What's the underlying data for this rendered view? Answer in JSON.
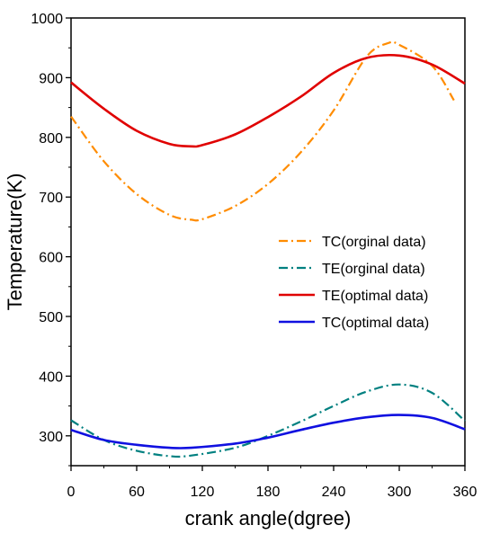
{
  "chart_data": {
    "type": "line",
    "xlabel": "crank angle(dgree)",
    "ylabel": "Temperature(K)",
    "xlim": [
      0,
      360
    ],
    "ylim": [
      250,
      1000
    ],
    "xticks": [
      0,
      60,
      120,
      180,
      240,
      300,
      360
    ],
    "yticks": [
      300,
      400,
      500,
      600,
      700,
      800,
      900,
      1000
    ],
    "grid": false,
    "legend_position": "right",
    "series": [
      {
        "name": "TC(orginal data)",
        "color": "#ff8c00",
        "dash": "dash-dot",
        "x": [
          0,
          30,
          60,
          90,
          110,
          120,
          150,
          180,
          210,
          240,
          270,
          290,
          300,
          330,
          350
        ],
        "y": [
          835,
          760,
          705,
          670,
          662,
          663,
          685,
          722,
          775,
          845,
          935,
          958,
          955,
          920,
          862
        ]
      },
      {
        "name": "TE(orginal data)",
        "color": "#008080",
        "dash": "dash-dot",
        "x": [
          0,
          30,
          60,
          90,
          110,
          150,
          180,
          210,
          240,
          270,
          300,
          330,
          360
        ],
        "y": [
          326,
          293,
          275,
          266,
          267,
          280,
          300,
          324,
          350,
          374,
          386,
          372,
          325
        ]
      },
      {
        "name": "TE(optimal data)",
        "color": "#e00000",
        "dash": "solid",
        "x": [
          0,
          30,
          60,
          90,
          110,
          120,
          150,
          180,
          210,
          240,
          270,
          300,
          330,
          360
        ],
        "y": [
          892,
          848,
          811,
          789,
          785,
          787,
          805,
          834,
          868,
          908,
          933,
          937,
          922,
          890
        ]
      },
      {
        "name": "TC(optimal data)",
        "color": "#1010e0",
        "dash": "solid",
        "x": [
          0,
          30,
          60,
          90,
          110,
          150,
          180,
          210,
          240,
          270,
          300,
          330,
          360
        ],
        "y": [
          310,
          293,
          285,
          280,
          280,
          287,
          297,
          310,
          322,
          331,
          335,
          330,
          311
        ]
      }
    ]
  }
}
